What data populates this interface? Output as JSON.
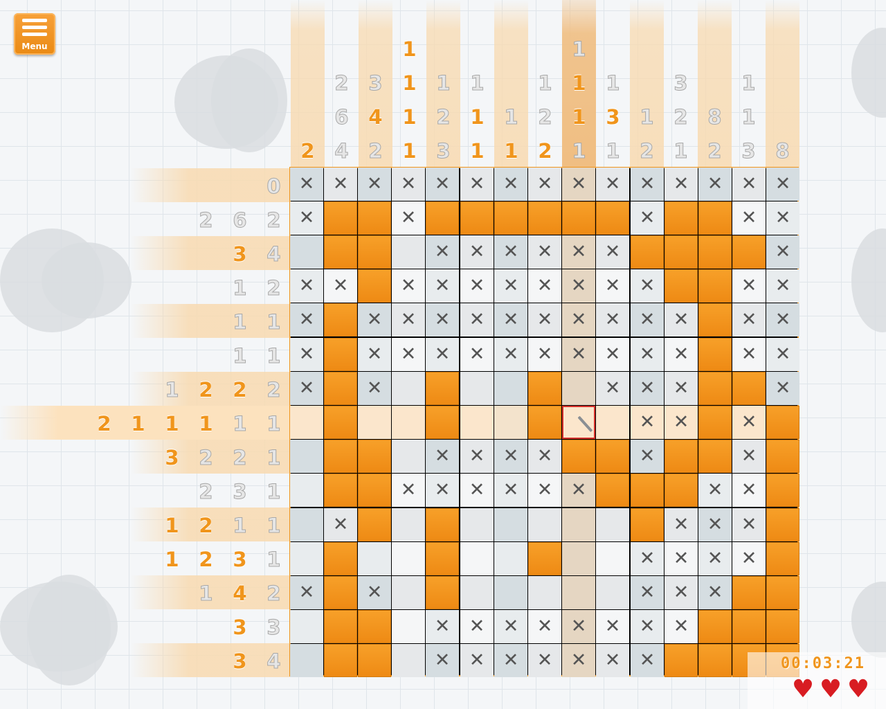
{
  "menu": {
    "label": "Menu",
    "icon": "hamburger-icon"
  },
  "timer": "00:03:21",
  "lives": 3,
  "colors": {
    "accent": "#f0951c",
    "filled": "#ee8a14",
    "cursor": "#d8302a",
    "heart": "#d81c22"
  },
  "puzzle": {
    "rows": 15,
    "cols": 15,
    "selected_row": 7,
    "selected_col": 8,
    "column_clues": [
      [
        {
          "v": "2",
          "s": "orange"
        }
      ],
      [
        {
          "v": "2",
          "s": "grey"
        },
        {
          "v": "6",
          "s": "grey"
        },
        {
          "v": "4",
          "s": "grey"
        }
      ],
      [
        {
          "v": "3",
          "s": "grey"
        },
        {
          "v": "4",
          "s": "orange"
        },
        {
          "v": "2",
          "s": "grey"
        }
      ],
      [
        {
          "v": "1",
          "s": "orange"
        },
        {
          "v": "1",
          "s": "orange"
        },
        {
          "v": "1",
          "s": "orange"
        },
        {
          "v": "1",
          "s": "orange"
        }
      ],
      [
        {
          "v": "1",
          "s": "grey"
        },
        {
          "v": "2",
          "s": "grey"
        },
        {
          "v": "3",
          "s": "grey"
        }
      ],
      [
        {
          "v": "1",
          "s": "grey"
        },
        {
          "v": "1",
          "s": "orange"
        },
        {
          "v": "1",
          "s": "orange"
        }
      ],
      [
        {
          "v": "1",
          "s": "grey"
        },
        {
          "v": "1",
          "s": "orange"
        }
      ],
      [
        {
          "v": "1",
          "s": "grey"
        },
        {
          "v": "2",
          "s": "grey"
        },
        {
          "v": "2",
          "s": "orange"
        }
      ],
      [
        {
          "v": "1",
          "s": "grey"
        },
        {
          "v": "1",
          "s": "orange"
        },
        {
          "v": "1",
          "s": "orange"
        },
        {
          "v": "1",
          "s": "grey"
        }
      ],
      [
        {
          "v": "1",
          "s": "grey"
        },
        {
          "v": "3",
          "s": "orange"
        },
        {
          "v": "1",
          "s": "grey"
        }
      ],
      [
        {
          "v": "1",
          "s": "grey"
        },
        {
          "v": "2",
          "s": "grey"
        }
      ],
      [
        {
          "v": "3",
          "s": "grey"
        },
        {
          "v": "2",
          "s": "grey"
        },
        {
          "v": "1",
          "s": "grey"
        }
      ],
      [
        {
          "v": "8",
          "s": "grey"
        },
        {
          "v": "2",
          "s": "grey"
        }
      ],
      [
        {
          "v": "1",
          "s": "grey"
        },
        {
          "v": "1",
          "s": "grey"
        },
        {
          "v": "3",
          "s": "grey"
        }
      ],
      [
        {
          "v": "8",
          "s": "grey"
        }
      ]
    ],
    "row_clues": [
      [
        {
          "v": "0",
          "s": "grey"
        }
      ],
      [
        {
          "v": "2",
          "s": "grey"
        },
        {
          "v": "6",
          "s": "grey"
        },
        {
          "v": "2",
          "s": "grey"
        }
      ],
      [
        {
          "v": "3",
          "s": "orange"
        },
        {
          "v": "4",
          "s": "grey"
        }
      ],
      [
        {
          "v": "1",
          "s": "grey"
        },
        {
          "v": "2",
          "s": "grey"
        }
      ],
      [
        {
          "v": "1",
          "s": "grey"
        },
        {
          "v": "1",
          "s": "grey"
        }
      ],
      [
        {
          "v": "1",
          "s": "grey"
        },
        {
          "v": "1",
          "s": "grey"
        }
      ],
      [
        {
          "v": "1",
          "s": "grey"
        },
        {
          "v": "2",
          "s": "orange"
        },
        {
          "v": "2",
          "s": "orange"
        },
        {
          "v": "2",
          "s": "grey"
        }
      ],
      [
        {
          "v": "2",
          "s": "orange"
        },
        {
          "v": "1",
          "s": "orange"
        },
        {
          "v": "1",
          "s": "orange"
        },
        {
          "v": "1",
          "s": "orange"
        },
        {
          "v": "1",
          "s": "grey"
        },
        {
          "v": "1",
          "s": "grey"
        }
      ],
      [
        {
          "v": "3",
          "s": "orange"
        },
        {
          "v": "2",
          "s": "grey"
        },
        {
          "v": "2",
          "s": "grey"
        },
        {
          "v": "1",
          "s": "grey"
        }
      ],
      [
        {
          "v": "2",
          "s": "grey"
        },
        {
          "v": "3",
          "s": "grey"
        },
        {
          "v": "1",
          "s": "grey"
        }
      ],
      [
        {
          "v": "1",
          "s": "orange"
        },
        {
          "v": "2",
          "s": "orange"
        },
        {
          "v": "1",
          "s": "grey"
        },
        {
          "v": "1",
          "s": "grey"
        }
      ],
      [
        {
          "v": "1",
          "s": "orange"
        },
        {
          "v": "2",
          "s": "orange"
        },
        {
          "v": "3",
          "s": "orange"
        },
        {
          "v": "1",
          "s": "grey"
        }
      ],
      [
        {
          "v": "1",
          "s": "grey"
        },
        {
          "v": "4",
          "s": "orange"
        },
        {
          "v": "2",
          "s": "grey"
        }
      ],
      [
        {
          "v": "3",
          "s": "orange"
        },
        {
          "v": "3",
          "s": "grey"
        }
      ],
      [
        {
          "v": "3",
          "s": "orange"
        },
        {
          "v": "4",
          "s": "grey"
        }
      ]
    ],
    "grid": [
      "XXXXXXXXXXXXXXX",
      "X##X######X##XX",
      ".##.XXXXXX####X",
      "XX#XXXXXXXX##XX",
      "X#XXXXXXXXXX#XX",
      "X#XXXXXXXXXX#XX",
      "X#X.#..#.XXX##X",
      ".#..#..#?.XX#X#",
      ".##.XXXX##X##X#",
      ".##XXXXXX###XX#",
      ".X#.#.....#XXX#",
      ".#..#..#..XXXX#",
      "X#X.#.....XXX##",
      ".##.XXXXXXXX###",
      ".##.XXXXXXX####"
    ]
  }
}
